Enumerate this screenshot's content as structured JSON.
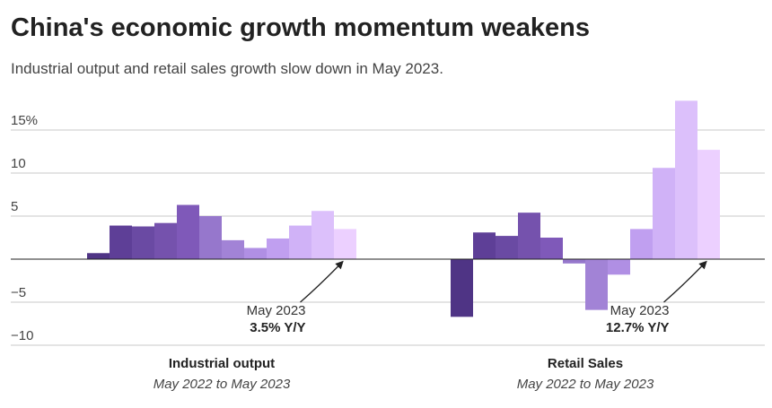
{
  "chart_data": {
    "type": "bar",
    "title": "China's economic growth momentum weakens",
    "subtitle": "Industrial output and retail sales growth slow down in May 2023.",
    "ylim": [
      -10,
      18.5
    ],
    "yticks": [
      {
        "value": 15,
        "label": "15%"
      },
      10,
      5,
      {
        "value": -5,
        "label": "−5"
      },
      {
        "value": -10,
        "label": "−10"
      }
    ],
    "grid": true,
    "colors": [
      "#4f3485",
      "#5e3f97",
      "#6a4aa3",
      "#7552ad",
      "#7f59b9",
      "#9677cc",
      "#a283d6",
      "#b08fe4",
      "#c09ff0",
      "#d0b2f7",
      "#dcc0fb",
      "#ecd0ff"
    ],
    "groups": [
      {
        "label": "Industrial output",
        "sublabel": "May 2022 to May 2023",
        "categories": [
          null,
          null,
          null,
          null,
          null,
          null,
          null,
          null,
          null,
          null,
          null,
          null
        ],
        "values": [
          0.7,
          3.9,
          3.8,
          4.2,
          6.3,
          5.0,
          2.2,
          1.3,
          2.4,
          3.9,
          5.6,
          3.5
        ],
        "annotation": [
          "May 2023",
          "3.5% Y/Y"
        ]
      },
      {
        "label": "Retail Sales",
        "sublabel": "May 2022 to May 2023",
        "categories": [
          null,
          null,
          null,
          null,
          null,
          null,
          null,
          null,
          null,
          null,
          null,
          null
        ],
        "values": [
          -6.7,
          3.1,
          2.7,
          5.4,
          2.5,
          -0.5,
          -5.9,
          -1.8,
          3.5,
          10.6,
          18.4,
          12.7
        ],
        "annotation": [
          "May 2023",
          "12.7% Y/Y"
        ]
      }
    ]
  }
}
